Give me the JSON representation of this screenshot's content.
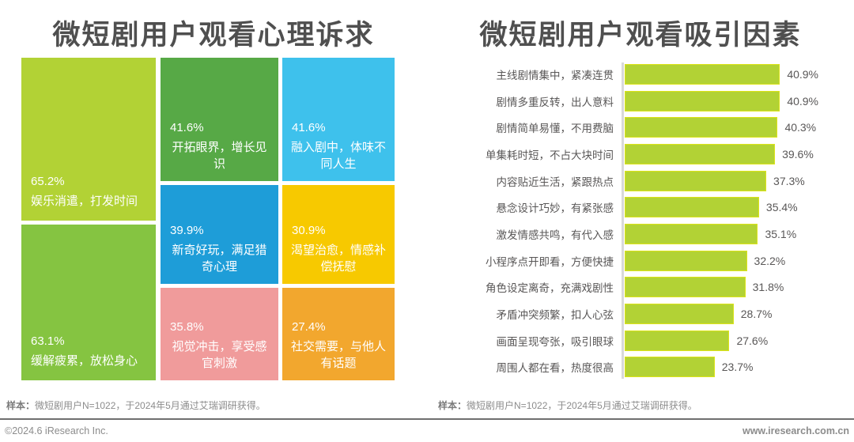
{
  "chart_data": [
    {
      "type": "treemap",
      "title": "微短剧用户观看心理诉求",
      "unit": "%",
      "items": [
        {
          "label": "娱乐消遣，打发时间",
          "value": 65.2,
          "display": "65.2%",
          "color": "#b2d235"
        },
        {
          "label": "缓解疲累，放松身心",
          "value": 63.1,
          "display": "63.1%",
          "color": "#85c441"
        },
        {
          "label": "开拓眼界，增长见识",
          "value": 41.6,
          "display": "41.6%",
          "color": "#57a946"
        },
        {
          "label": "融入剧中，体味不同人生",
          "value": 41.6,
          "display": "41.6%",
          "color": "#3ec1ec"
        },
        {
          "label": "新奇好玩，满足猎奇心理",
          "value": 39.9,
          "display": "39.9%",
          "color": "#1e9dd8"
        },
        {
          "label": "渴望治愈，情感补偿抚慰",
          "value": 30.9,
          "display": "30.9%",
          "color": "#f7c900"
        },
        {
          "label": "视觉冲击，享受感官刺激",
          "value": 35.8,
          "display": "35.8%",
          "color": "#f09b9b"
        },
        {
          "label": "社交需要，与他人有话题",
          "value": 27.4,
          "display": "27.4%",
          "color": "#f2a72e"
        }
      ],
      "footnote_prefix": "样本：",
      "footnote": "微短剧用户N=1022，于2024年5月通过艾瑞调研获得。"
    },
    {
      "type": "bar",
      "orientation": "horizontal",
      "title": "微短剧用户观看吸引因素",
      "unit": "%",
      "xlim": [
        0,
        45
      ],
      "bar_color": "#b2d235",
      "categories": [
        "主线剧情集中，紧凑连贯",
        "剧情多重反转，出人意料",
        "剧情简单易懂，不用费脑",
        "单集耗时短，不占大块时间",
        "内容贴近生活，紧跟热点",
        "悬念设计巧妙，有紧张感",
        "激发情感共鸣，有代入感",
        "小程序点开即看，方便快捷",
        "角色设定离奇，充满戏剧性",
        "矛盾冲突频繁，扣人心弦",
        "画面呈现夸张，吸引眼球",
        "周围人都在看，热度很高"
      ],
      "values": [
        40.9,
        40.9,
        40.3,
        39.6,
        37.3,
        35.4,
        35.1,
        32.2,
        31.8,
        28.7,
        27.6,
        23.7
      ],
      "labels": [
        "40.9%",
        "40.9%",
        "40.3%",
        "39.6%",
        "37.3%",
        "35.4%",
        "35.1%",
        "32.2%",
        "31.8%",
        "28.7%",
        "27.6%",
        "23.7%"
      ],
      "legend": null,
      "grid": false,
      "footnote_prefix": "样本：",
      "footnote": "微短剧用户N=1022，于2024年5月通过艾瑞调研获得。"
    }
  ],
  "footer": {
    "copyright": "©2024.6 iResearch Inc.",
    "website": "www.iresearch.com.cn"
  },
  "colors": {
    "title": "#4f4f4f",
    "text": "#595757",
    "footnote": "#8c8c8c",
    "axis": "#d9d9d9",
    "divider": "#6f6f6f",
    "background": "#ffffff"
  }
}
